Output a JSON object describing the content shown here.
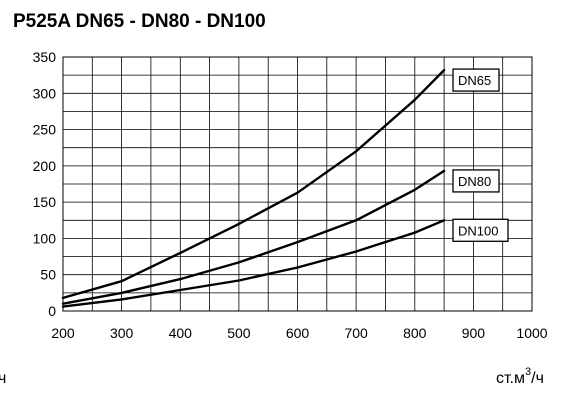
{
  "chart_data": {
    "type": "line",
    "title": "P525A DN65 - DN80 - DN100",
    "xlabel": "ст.м³/ч",
    "xlabel_parts": {
      "base": "ст.м",
      "sup": "3",
      "rest": "/ч"
    },
    "left_fragment": "ч",
    "ylabel": "",
    "xlim": [
      200,
      1000
    ],
    "ylim": [
      0,
      350
    ],
    "x_ticks": [
      200,
      300,
      400,
      500,
      600,
      700,
      800,
      900,
      1000
    ],
    "y_ticks": [
      0,
      50,
      100,
      150,
      200,
      250,
      300,
      350
    ],
    "x_minor_step": 50,
    "y_minor_step": 25,
    "grid": true,
    "legend_placement": "right end of each line",
    "series": [
      {
        "name": "DN65",
        "x": [
          200,
          300,
          400,
          500,
          600,
          700,
          800,
          850
        ],
        "y": [
          18,
          41,
          80,
          120,
          163,
          220,
          291,
          332
        ]
      },
      {
        "name": "DN80",
        "x": [
          200,
          300,
          400,
          500,
          600,
          700,
          800,
          850
        ],
        "y": [
          10,
          25,
          44,
          67,
          95,
          125,
          167,
          193
        ]
      },
      {
        "name": "DN100",
        "x": [
          200,
          300,
          400,
          500,
          600,
          700,
          800,
          850
        ],
        "y": [
          6,
          16,
          29,
          42,
          60,
          82,
          108,
          125
        ]
      }
    ]
  }
}
